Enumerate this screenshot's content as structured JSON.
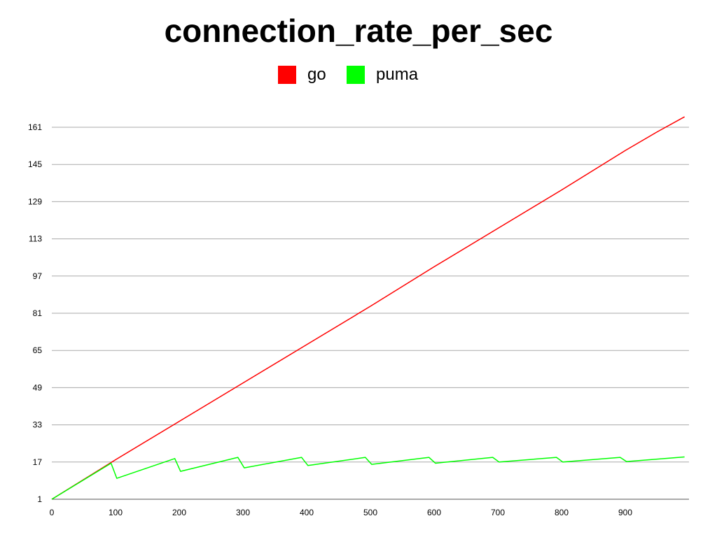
{
  "chart_data": {
    "type": "line",
    "title": "connection_rate_per_sec",
    "xlabel": "",
    "ylabel": "",
    "xlim": [
      0,
      993
    ],
    "ylim": [
      1,
      161
    ],
    "x_ticks": [
      "0",
      "100",
      "200",
      "300",
      "400",
      "500",
      "600",
      "700",
      "800",
      "900"
    ],
    "y_ticks": [
      "1",
      "17",
      "33",
      "49",
      "65",
      "81",
      "97",
      "113",
      "129",
      "145",
      "161"
    ],
    "grid": "horizontal",
    "legend_position": "top-center",
    "series": [
      {
        "name": "go",
        "color": "#ff0000",
        "x": [
          0,
          100,
          200,
          300,
          400,
          500,
          600,
          700,
          800,
          850,
          900,
          950,
          993
        ],
        "y": [
          1,
          18,
          34.5,
          51,
          67.5,
          84,
          101,
          117.5,
          134,
          142.5,
          151,
          159,
          165.5
        ]
      },
      {
        "name": "puma",
        "color": "#00ff00",
        "x": [
          0,
          93,
          102,
          193,
          202,
          292,
          302,
          392,
          402,
          492,
          502,
          592,
          602,
          692,
          702,
          792,
          802,
          892,
          902,
          993
        ],
        "y": [
          1,
          16.5,
          10,
          18.5,
          13,
          19,
          14.5,
          19,
          15.5,
          19,
          16,
          19,
          16.5,
          19,
          17,
          19,
          17,
          19,
          17.2,
          19.2
        ]
      }
    ]
  }
}
